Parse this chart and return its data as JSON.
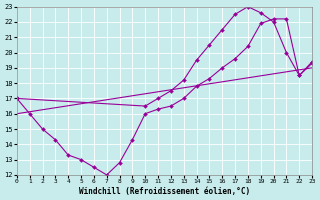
{
  "bg_color": "#c8ecec",
  "grid_color": "#b8d8d8",
  "line_color": "#990099",
  "xlabel": "Windchill (Refroidissement éolien,°C)",
  "xlim": [
    0,
    23
  ],
  "ylim": [
    12,
    23
  ],
  "xticks": [
    0,
    1,
    2,
    3,
    4,
    5,
    6,
    7,
    8,
    9,
    10,
    11,
    12,
    13,
    14,
    15,
    16,
    17,
    18,
    19,
    20,
    21,
    22,
    23
  ],
  "yticks": [
    12,
    13,
    14,
    15,
    16,
    17,
    18,
    19,
    20,
    21,
    22,
    23
  ],
  "line1_x": [
    0,
    1,
    2,
    3,
    4,
    5,
    6,
    7,
    8,
    9,
    10,
    11,
    12,
    13,
    14,
    15,
    16,
    17,
    18,
    19,
    20,
    21,
    22,
    23
  ],
  "line1_y": [
    17,
    16,
    15,
    14.3,
    13.3,
    13.0,
    12.5,
    12,
    12.8,
    14.3,
    16,
    16.3,
    16.5,
    17.0,
    17.8,
    18.3,
    19.0,
    19.6,
    20.4,
    21.9,
    22.2,
    22.2,
    18.5,
    19.4
  ],
  "line2_x": [
    0,
    10,
    11,
    12,
    13,
    14,
    15,
    16,
    17,
    18,
    19,
    20,
    21,
    22,
    23
  ],
  "line2_y": [
    17,
    16.5,
    17.0,
    17.5,
    18.2,
    19.5,
    20.5,
    21.5,
    22.5,
    23.0,
    22.6,
    22.0,
    20.0,
    18.5,
    19.3
  ],
  "line3_x": [
    0,
    23
  ],
  "line3_y": [
    16,
    19
  ]
}
